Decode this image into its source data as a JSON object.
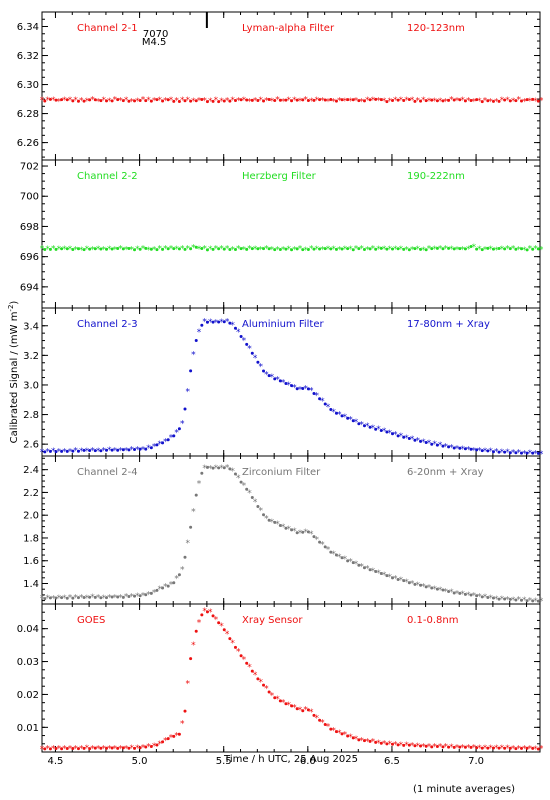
{
  "chart_data": {
    "type": "scatter",
    "x_axis": {
      "label": "Time / h UTC, 25 Aug 2025",
      "range": [
        4.42,
        7.38
      ],
      "ticks": [
        4.5,
        5.0,
        5.5,
        6.0,
        6.5,
        7.0
      ],
      "tick_labels": [
        "4.5",
        "5.0",
        "5.5",
        "6.0",
        "6.5",
        "7.0"
      ]
    },
    "y_axis_label": "Calibrated Signal / (mW m",
    "y_axis_label_exponent": "-2",
    "y_axis_label_close": ")",
    "footnote": "(1 minute averages)",
    "panels": [
      {
        "channel": "Channel 2-1",
        "filter": "Lyman-alpha Filter",
        "band": "120-123nm",
        "color": "#ee1111",
        "ylim": [
          6.248,
          6.35
        ],
        "yticks": [
          6.26,
          6.28,
          6.3,
          6.32,
          6.34
        ],
        "ytick_labels": [
          "6.26",
          "6.28",
          "6.30",
          "6.32",
          "6.34"
        ],
        "flare_marker": {
          "x": 5.4,
          "label_top": "7070",
          "label_bottom": "M4.5"
        },
        "profile": [
          [
            4.42,
            6.289
          ],
          [
            7.38,
            6.289
          ]
        ],
        "noise": 0.0008
      },
      {
        "channel": "Channel 2-2",
        "filter": "Herzberg Filter",
        "band": "190-222nm",
        "color": "#22dd22",
        "ylim": [
          692.6,
          702.4
        ],
        "yticks": [
          694,
          696,
          698,
          700,
          702
        ],
        "ytick_labels": [
          "694",
          "696",
          "698",
          "700",
          "702"
        ],
        "profile": [
          [
            4.42,
            696.5
          ],
          [
            5.3,
            696.5
          ],
          [
            5.33,
            696.65
          ],
          [
            5.36,
            696.5
          ],
          [
            6.95,
            696.5
          ],
          [
            6.98,
            696.7
          ],
          [
            7.01,
            696.5
          ],
          [
            7.38,
            696.5
          ]
        ],
        "noise": 0.05
      },
      {
        "channel": "Channel 2-3",
        "filter": "Aluminium Filter",
        "band": "17-80nm + Xray",
        "color": "#1111cc",
        "ylim": [
          2.52,
          3.52
        ],
        "yticks": [
          2.6,
          2.8,
          3.0,
          3.2,
          3.4
        ],
        "ytick_labels": [
          "2.6",
          "2.8",
          "3.0",
          "3.2",
          "3.4"
        ],
        "profile": [
          [
            4.42,
            2.55
          ],
          [
            4.9,
            2.56
          ],
          [
            5.05,
            2.57
          ],
          [
            5.12,
            2.6
          ],
          [
            5.2,
            2.65
          ],
          [
            5.25,
            2.72
          ],
          [
            5.28,
            2.9
          ],
          [
            5.31,
            3.15
          ],
          [
            5.34,
            3.32
          ],
          [
            5.38,
            3.43
          ],
          [
            5.45,
            3.42
          ],
          [
            5.52,
            3.43
          ],
          [
            5.56,
            3.4
          ],
          [
            5.65,
            3.25
          ],
          [
            5.75,
            3.07
          ],
          [
            5.85,
            3.02
          ],
          [
            5.95,
            2.97
          ],
          [
            6.0,
            2.98
          ],
          [
            6.06,
            2.92
          ],
          [
            6.15,
            2.82
          ],
          [
            6.3,
            2.74
          ],
          [
            6.5,
            2.67
          ],
          [
            6.7,
            2.61
          ],
          [
            6.9,
            2.57
          ],
          [
            7.1,
            2.55
          ],
          [
            7.38,
            2.535
          ]
        ],
        "noise": 0.003
      },
      {
        "channel": "Channel 2-4",
        "filter": "Zirconium Filter",
        "band": "6-20nm + Xray",
        "color": "#777777",
        "ylim": [
          1.22,
          2.52
        ],
        "yticks": [
          1.4,
          1.6,
          1.8,
          2.0,
          2.2,
          2.4
        ],
        "ytick_labels": [
          "1.4",
          "1.6",
          "1.8",
          "2.0",
          "2.2",
          "2.4"
        ],
        "profile": [
          [
            4.42,
            1.27
          ],
          [
            4.9,
            1.28
          ],
          [
            5.05,
            1.3
          ],
          [
            5.12,
            1.35
          ],
          [
            5.2,
            1.4
          ],
          [
            5.25,
            1.5
          ],
          [
            5.28,
            1.7
          ],
          [
            5.31,
            1.95
          ],
          [
            5.34,
            2.2
          ],
          [
            5.38,
            2.42
          ],
          [
            5.45,
            2.41
          ],
          [
            5.52,
            2.42
          ],
          [
            5.56,
            2.38
          ],
          [
            5.65,
            2.2
          ],
          [
            5.75,
            1.97
          ],
          [
            5.85,
            1.9
          ],
          [
            5.95,
            1.84
          ],
          [
            6.0,
            1.86
          ],
          [
            6.06,
            1.78
          ],
          [
            6.15,
            1.66
          ],
          [
            6.3,
            1.56
          ],
          [
            6.5,
            1.45
          ],
          [
            6.7,
            1.37
          ],
          [
            6.9,
            1.31
          ],
          [
            7.1,
            1.27
          ],
          [
            7.38,
            1.245
          ]
        ],
        "noise": 0.004
      },
      {
        "channel": "GOES",
        "filter": "Xray Sensor",
        "band": "0.1-0.8nm",
        "color": "#ee1111",
        "ylim": [
          0.0025,
          0.0475
        ],
        "yticks": [
          0.01,
          0.02,
          0.03,
          0.04
        ],
        "ytick_labels": [
          "0.01",
          "0.02",
          "0.03",
          "0.04"
        ],
        "profile": [
          [
            4.42,
            0.0035
          ],
          [
            5.0,
            0.0037
          ],
          [
            5.1,
            0.0045
          ],
          [
            5.17,
            0.0065
          ],
          [
            5.21,
            0.0075
          ],
          [
            5.24,
            0.008
          ],
          [
            5.27,
            0.015
          ],
          [
            5.3,
            0.03
          ],
          [
            5.34,
            0.04
          ],
          [
            5.38,
            0.0455
          ],
          [
            5.42,
            0.045
          ],
          [
            5.5,
            0.04
          ],
          [
            5.6,
            0.032
          ],
          [
            5.7,
            0.025
          ],
          [
            5.8,
            0.019
          ],
          [
            5.9,
            0.0165
          ],
          [
            5.97,
            0.015
          ],
          [
            6.0,
            0.0155
          ],
          [
            6.05,
            0.013
          ],
          [
            6.15,
            0.009
          ],
          [
            6.3,
            0.0062
          ],
          [
            6.5,
            0.0048
          ],
          [
            6.7,
            0.0042
          ],
          [
            7.0,
            0.0038
          ],
          [
            7.38,
            0.0035
          ]
        ],
        "noise": 0.0001
      }
    ]
  }
}
